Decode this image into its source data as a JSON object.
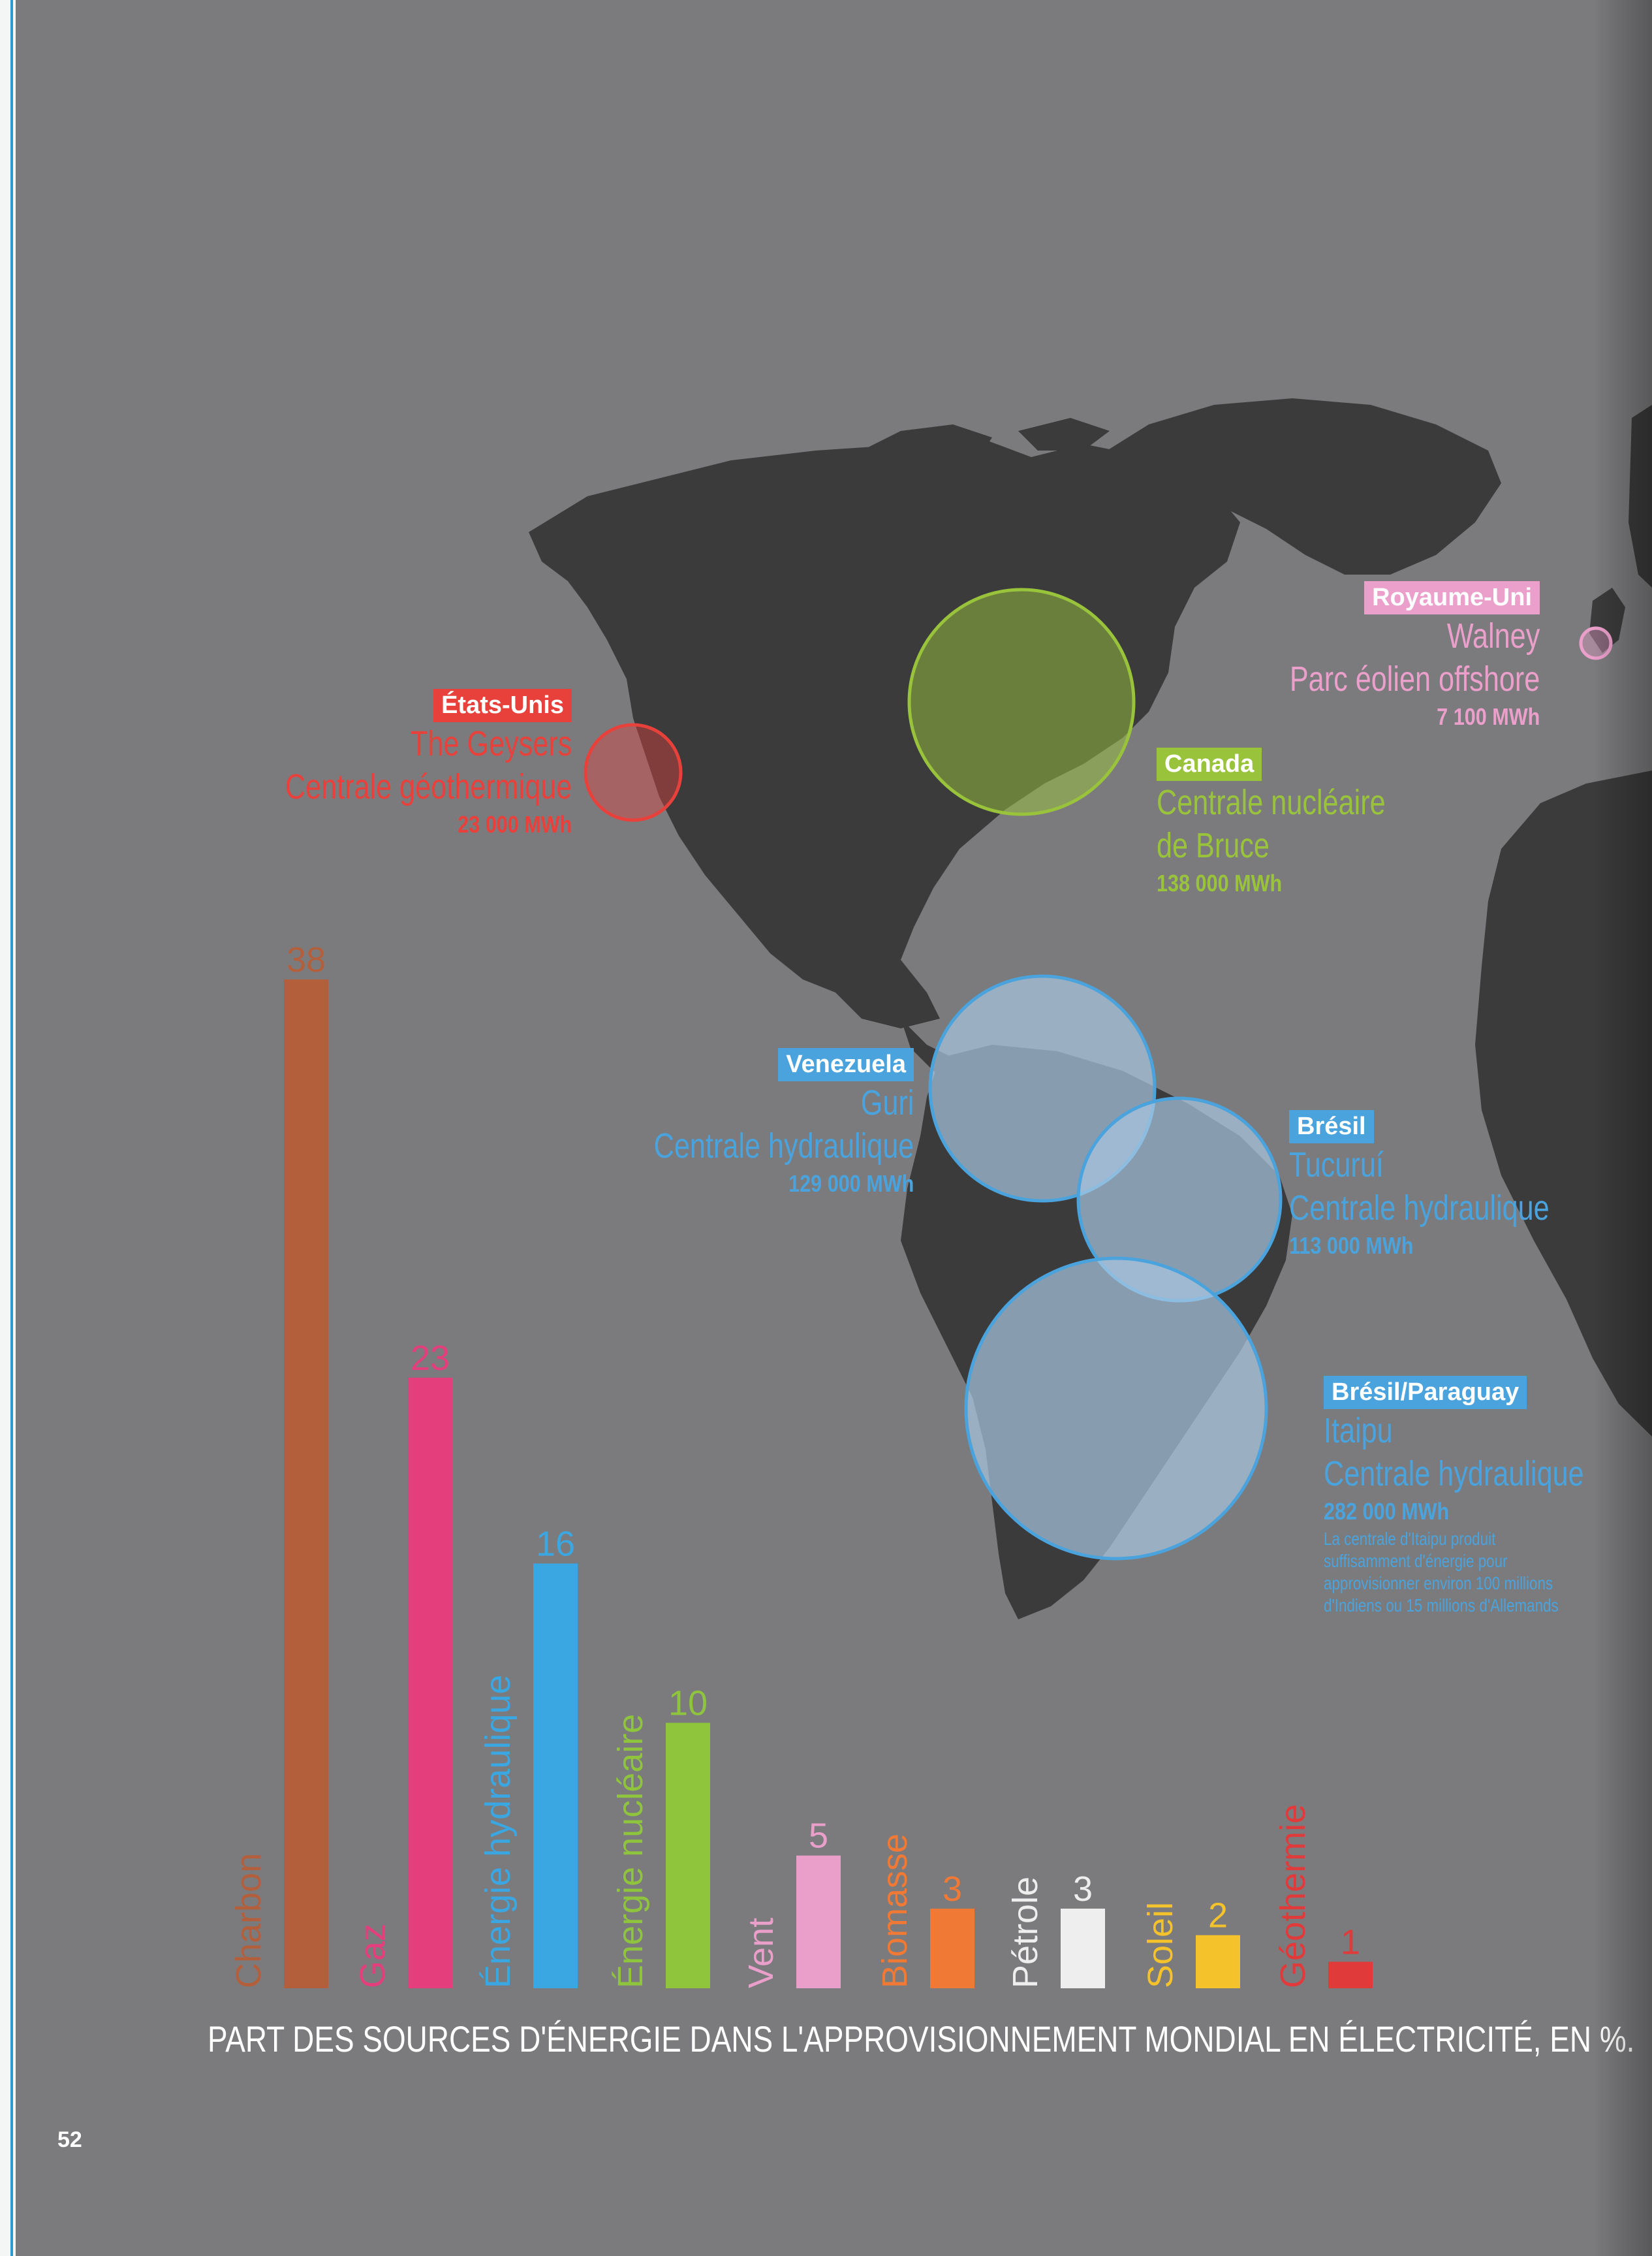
{
  "colors": {
    "background": "#7b7b7d",
    "land": "#3b3b3c",
    "usa": "#e8413c",
    "uk": "#eb9fcb",
    "canada": "#9ac33c",
    "hydro": "#4aa3dd"
  },
  "plants": {
    "usa": {
      "country": "États-Unis",
      "name": "The Geysers",
      "type": "Centrale géothermique",
      "output": "23 000 MWh"
    },
    "uk": {
      "country": "Royaume-Uni",
      "name": "Walney",
      "type": "Parc éolien offshore",
      "output": "7 100  MWh"
    },
    "canada": {
      "country": "Canada",
      "name": "Centrale nucléaire",
      "type": "de Bruce",
      "output": "138 000 MWh"
    },
    "venezuela": {
      "country": "Venezuela",
      "name": "Guri",
      "type": "Centrale hydraulique",
      "output": "129 000 MWh"
    },
    "bresil": {
      "country": "Brésil",
      "name": "Tucuruí",
      "type": "Centrale hydraulique",
      "output": "113 000 MWh"
    },
    "itaipu": {
      "country": "Brésil/Paraguay",
      "name": "Itaipu",
      "type": "Centrale hydraulique",
      "output": "282 000 MWh",
      "note": [
        "La centrale d'Itaipu produit",
        "suffisamment d'énergie pour",
        "approvisionner environ 100 millions",
        "d'Indiens ou 15 millions d'Allemands"
      ]
    }
  },
  "chart_data": {
    "type": "bar",
    "title": "PART DES SOURCES D'ÉNERGIE DANS L'APPROVISIONNEMENT MONDIAL EN ÉLECTRICITÉ, EN %.",
    "categories": [
      "Charbon",
      "Gaz",
      "Énergie hydraulique",
      "Énergie nucléaire",
      "Vent",
      "Biomasse",
      "Pétrole",
      "Soleil",
      "Géothermie"
    ],
    "values": [
      38,
      23,
      16,
      10,
      5,
      3,
      3,
      2,
      1
    ],
    "colors": [
      "#b45f3c",
      "#e43f7c",
      "#3aa7e3",
      "#8fc43d",
      "#ea9fcb",
      "#f07a35",
      "#eeeeee",
      "#f4c22b",
      "#e03a3a"
    ],
    "data_labels": [
      "38",
      "23",
      "16",
      "10",
      "5",
      "3",
      "3",
      "2",
      "1"
    ],
    "ylim": [
      0,
      38
    ],
    "grid": false,
    "legend": "none"
  },
  "page_number": "52"
}
